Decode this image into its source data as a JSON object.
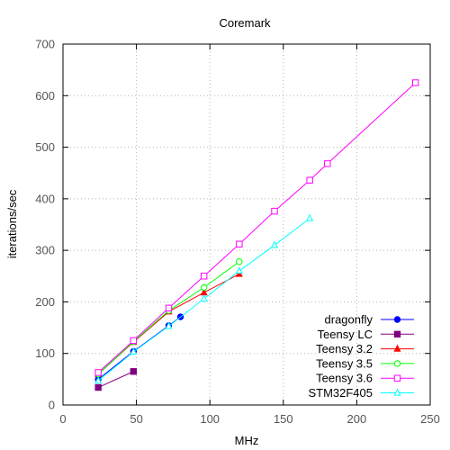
{
  "chart_data": {
    "type": "line",
    "title": "Coremark",
    "xlabel": "MHz",
    "ylabel": "iterations/sec",
    "xlim": [
      0,
      250
    ],
    "ylim": [
      0,
      700
    ],
    "xticks": [
      0,
      50,
      100,
      150,
      200,
      250
    ],
    "yticks": [
      0,
      100,
      200,
      300,
      400,
      500,
      600,
      700
    ],
    "grid": true,
    "legend_position": "bottom-right",
    "series": [
      {
        "name": "dragonfly",
        "color": "#0000ff",
        "marker": "circle-filled",
        "x": [
          24,
          48,
          72,
          80
        ],
        "y": [
          50,
          104,
          154,
          171
        ]
      },
      {
        "name": "Teensy LC",
        "color": "#800080",
        "marker": "square-filled",
        "x": [
          24,
          48
        ],
        "y": [
          34,
          65
        ]
      },
      {
        "name": "Teensy 3.2",
        "color": "#ff0000",
        "marker": "triangle-filled",
        "x": [
          24,
          48,
          72,
          96,
          120
        ],
        "y": [
          60,
          122,
          181,
          218,
          254
        ]
      },
      {
        "name": "Teensy 3.5",
        "color": "#00ff00",
        "marker": "circle-open",
        "x": [
          24,
          48,
          72,
          96,
          120
        ],
        "y": [
          60,
          123,
          183,
          228,
          278
        ]
      },
      {
        "name": "Teensy 3.6",
        "color": "#ff00ff",
        "marker": "square-open",
        "x": [
          24,
          48,
          72,
          96,
          120,
          144,
          168,
          180,
          240
        ],
        "y": [
          63,
          125,
          188,
          250,
          312,
          376,
          436,
          468,
          625
        ]
      },
      {
        "name": "STM32F405",
        "color": "#00ffff",
        "marker": "triangle-open",
        "x": [
          24,
          48,
          72,
          96,
          120,
          144,
          168
        ],
        "y": [
          47,
          103,
          153,
          206,
          260,
          310,
          362
        ]
      }
    ]
  }
}
